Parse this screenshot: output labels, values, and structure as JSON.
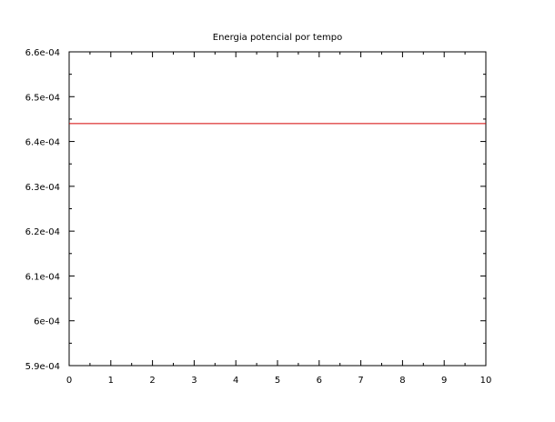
{
  "chart_data": {
    "type": "line",
    "title": "Energia potencial por tempo",
    "xlabel": "",
    "ylabel": "",
    "xlim": [
      0,
      10
    ],
    "ylim": [
      0.00059,
      0.00066
    ],
    "x_ticks": [
      0,
      1,
      2,
      3,
      4,
      5,
      6,
      7,
      8,
      9,
      10
    ],
    "x_tick_labels": [
      "0",
      "1",
      "2",
      "3",
      "4",
      "5",
      "6",
      "7",
      "8",
      "9",
      "10"
    ],
    "y_ticks": [
      0.00059,
      0.0006,
      0.00061,
      0.00062,
      0.00063,
      0.00064,
      0.00065,
      0.00066
    ],
    "y_tick_labels": [
      "5.9e-04",
      "6e-04",
      "6.1e-04",
      "6.2e-04",
      "6.3e-04",
      "6.4e-04",
      "6.5e-04",
      "6.6e-04"
    ],
    "grid": false,
    "series": [
      {
        "x": [
          0,
          10
        ],
        "y": [
          0.000644,
          0.000644
        ],
        "color": "#d40000"
      }
    ]
  }
}
